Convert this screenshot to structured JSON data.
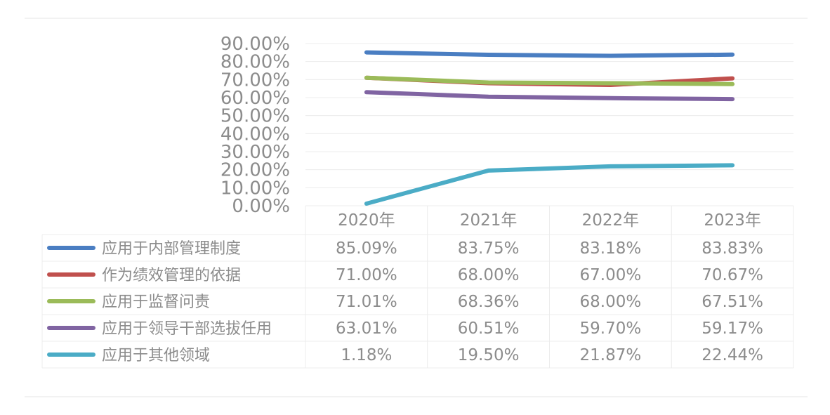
{
  "chart_data": {
    "type": "line",
    "categories": [
      "2020年",
      "2021年",
      "2022年",
      "2023年"
    ],
    "ylim": [
      0,
      90
    ],
    "yticks": [
      "0.00%",
      "10.00%",
      "20.00%",
      "30.00%",
      "40.00%",
      "50.00%",
      "60.00%",
      "70.00%",
      "80.00%",
      "90.00%"
    ],
    "grid": true,
    "legend": "data-table-bottom",
    "series": [
      {
        "name": "应用于内部管理制度",
        "values": [
          85.09,
          83.75,
          83.18,
          83.83
        ],
        "labels": [
          "85.09%",
          "83.75%",
          "83.18%",
          "83.83%"
        ],
        "color": "#4a7ec2"
      },
      {
        "name": "作为绩效管理的依据",
        "values": [
          71.0,
          68.0,
          67.0,
          70.67
        ],
        "labels": [
          "71.00%",
          "68.00%",
          "67.00%",
          "70.67%"
        ],
        "color": "#c0504d"
      },
      {
        "name": "应用于监督问责",
        "values": [
          71.01,
          68.36,
          68.0,
          67.51
        ],
        "labels": [
          "71.01%",
          "68.36%",
          "68.00%",
          "67.51%"
        ],
        "color": "#9bbb59"
      },
      {
        "name": "应用于领导干部选拔任用",
        "values": [
          63.01,
          60.51,
          59.7,
          59.17
        ],
        "labels": [
          "63.01%",
          "60.51%",
          "59.70%",
          "59.17%"
        ],
        "color": "#8064a2"
      },
      {
        "name": "应用于其他领域",
        "values": [
          1.18,
          19.5,
          21.87,
          22.44
        ],
        "labels": [
          "1.18%",
          "19.50%",
          "21.87%",
          "22.44%"
        ],
        "color": "#4bacc6"
      }
    ]
  }
}
